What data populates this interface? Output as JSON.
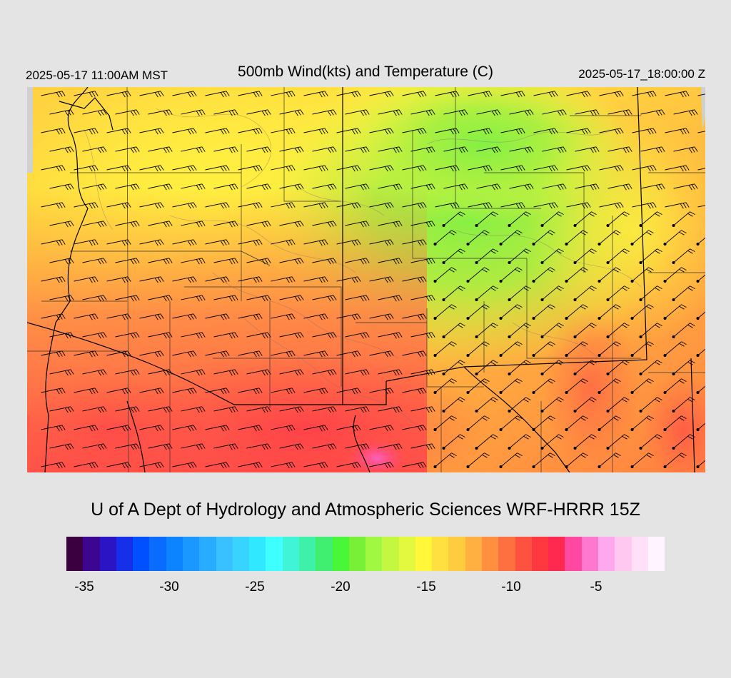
{
  "header": {
    "valid_local": "2025-05-17 11:00AM MST",
    "title": "500mb Wind(kts) and Temperature (C)",
    "valid_utc": "2025-05-17_18:00:00 Z"
  },
  "footer": {
    "credit": "U of A Dept of Hydrology and Atmospheric Sciences WRF-HRRR 15Z"
  },
  "colorbar": {
    "colors": [
      "#3a0040",
      "#3c0690",
      "#2a14c4",
      "#1530e8",
      "#0050ff",
      "#0a6cff",
      "#0c84ff",
      "#1a98ff",
      "#28acff",
      "#38c0ff",
      "#38d4ff",
      "#30e8ff",
      "#40ffff",
      "#40f4d8",
      "#3ef0a8",
      "#40ee70",
      "#48f838",
      "#78f038",
      "#a0f840",
      "#c4f840",
      "#e4f840",
      "#fff838",
      "#ffe040",
      "#ffcc40",
      "#ffb040",
      "#ff9040",
      "#ff7040",
      "#ff5040",
      "#ff3840",
      "#ff2850",
      "#ff48a0",
      "#ff78d0",
      "#ffa8f0",
      "#ffc8f0",
      "#ffe0f8",
      "#fff4ff"
    ],
    "tick_labels": [
      "-35",
      "-30",
      "-25",
      "-20",
      "-15",
      "-10",
      "-5"
    ]
  },
  "map": {
    "palette": {
      "pink": "#ff60c0",
      "red": "#ff4848",
      "orange": "#ff7a48",
      "light_orange": "#ffaa40",
      "yellow": "#ffee40",
      "yellow_green": "#d4f040",
      "green": "#9cf040",
      "bright_green": "#7cf048"
    },
    "no_data_color": "#d0d0d0",
    "overlays": [
      "state-boundaries",
      "county-boundaries",
      "terrain-contours",
      "wind-barbs"
    ]
  }
}
